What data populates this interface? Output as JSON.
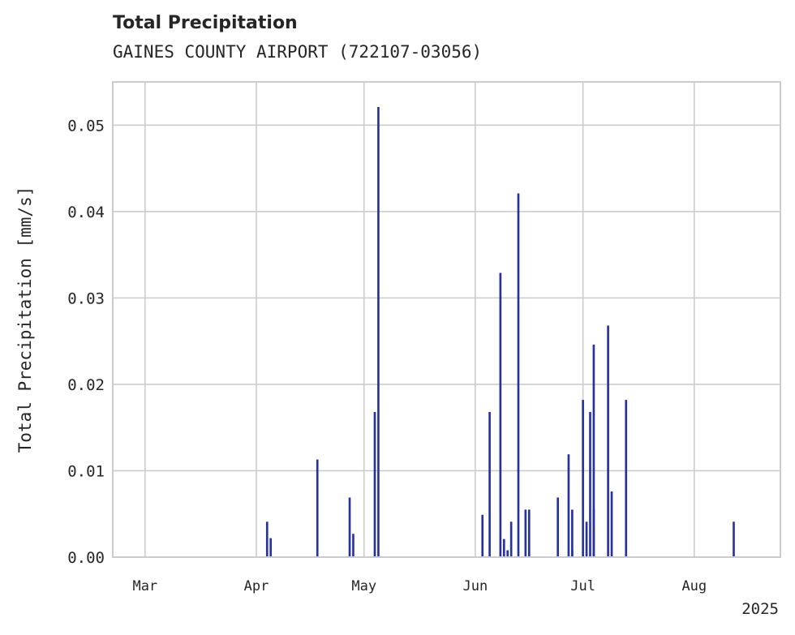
{
  "chart_data": {
    "type": "bar",
    "title": "Total Precipitation",
    "subtitle": "GAINES COUNTY AIRPORT (722107-03056)",
    "xlabel": "",
    "ylabel": "Total Precipitation [mm/s]",
    "xlim": [
      "2025-02-20",
      "2025-08-25"
    ],
    "ylim": [
      0,
      0.055
    ],
    "x_ticks": [
      "Mar",
      "Apr",
      "May",
      "Jun",
      "Jul",
      "Aug"
    ],
    "x_tick_dates": [
      "2025-03-01",
      "2025-04-01",
      "2025-05-01",
      "2025-06-01",
      "2025-07-01",
      "2025-08-01"
    ],
    "x_offset_label": "2025",
    "y_ticks": [
      0.0,
      0.01,
      0.02,
      0.03,
      0.04,
      0.05
    ],
    "y_tick_labels": [
      "0.00",
      "0.01",
      "0.02",
      "0.03",
      "0.04",
      "0.05"
    ],
    "grid": true,
    "bar_color": "#27339a",
    "x": [
      "2025-04-04",
      "2025-04-05",
      "2025-04-18",
      "2025-04-27",
      "2025-04-28",
      "2025-05-04",
      "2025-05-05",
      "2025-06-03",
      "2025-06-05",
      "2025-06-08",
      "2025-06-09",
      "2025-06-10",
      "2025-06-11",
      "2025-06-13",
      "2025-06-15",
      "2025-06-16",
      "2025-06-24",
      "2025-06-27",
      "2025-06-28",
      "2025-06-28",
      "2025-07-01",
      "2025-07-02",
      "2025-07-03",
      "2025-07-04",
      "2025-07-04",
      "2025-07-08",
      "2025-07-09",
      "2025-07-13",
      "2025-08-12"
    ],
    "values": [
      0.0041,
      0.0022,
      0.0113,
      0.0069,
      0.0027,
      0.0168,
      0.0521,
      0.0049,
      0.0168,
      0.0329,
      0.0021,
      0.0008,
      0.0041,
      0.0421,
      0.0055,
      0.0055,
      0.0069,
      0.0119,
      0.0055,
      0.0008,
      0.0182,
      0.0041,
      0.0168,
      0.0246,
      0.0055,
      0.0268,
      0.0076,
      0.0182,
      0.0041
    ]
  }
}
